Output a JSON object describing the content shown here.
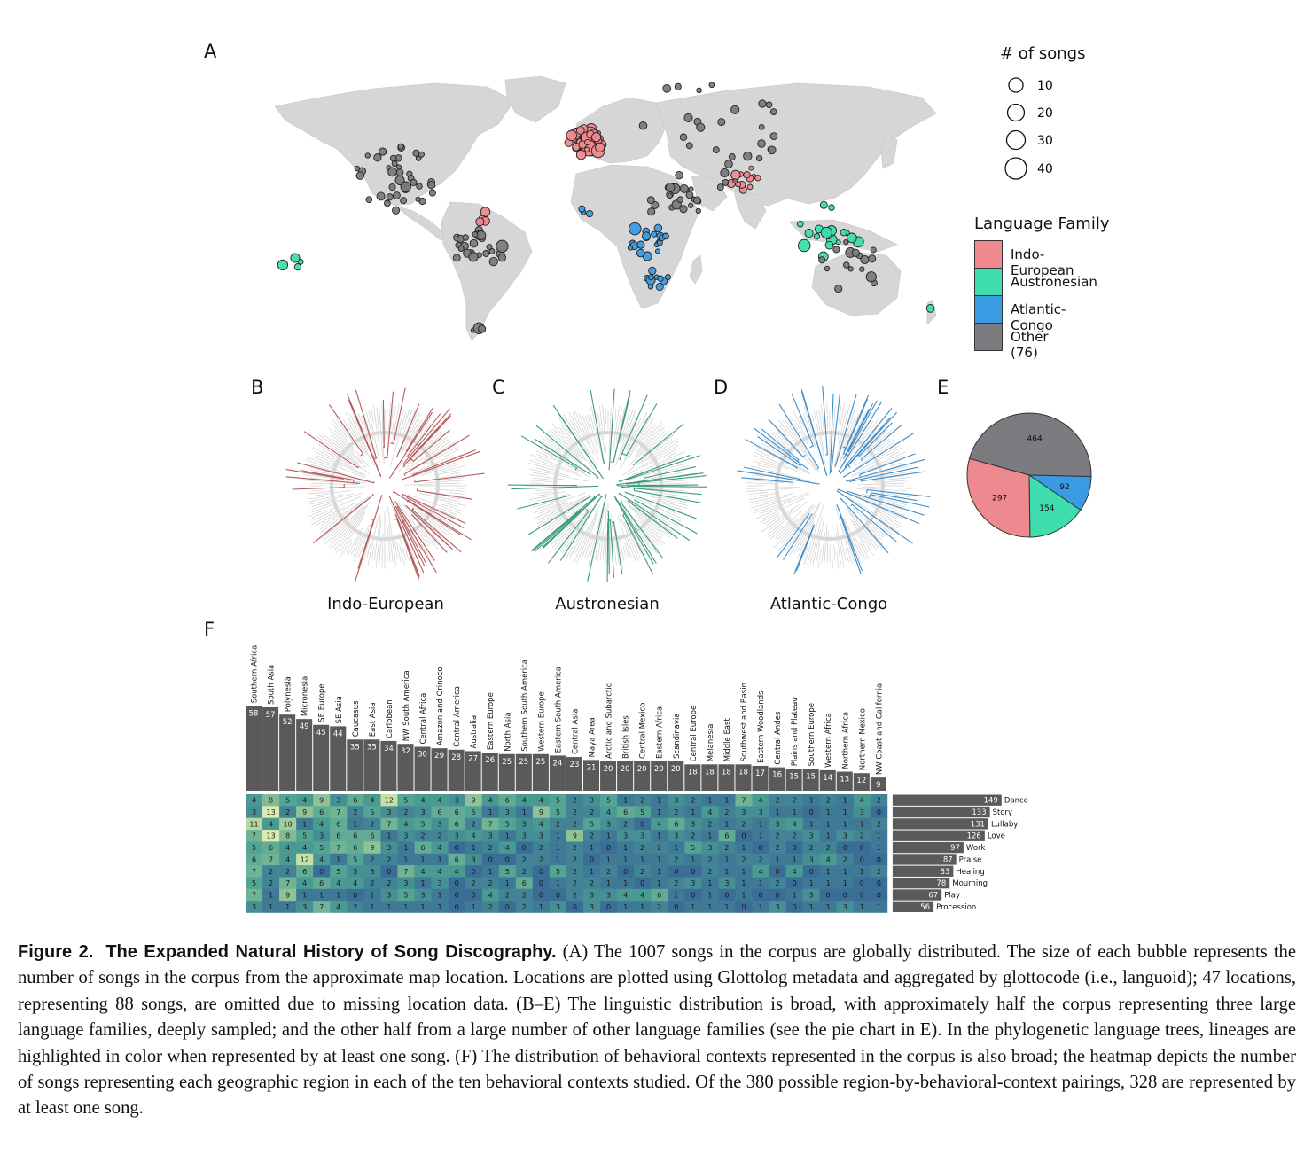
{
  "figure": {
    "panels": {
      "A": "A",
      "B": "B",
      "C": "C",
      "D": "D",
      "E": "E",
      "F": "F"
    },
    "caption": {
      "label": "Figure 2.",
      "title": "The Expanded Natural History of Song Discography.",
      "text": "(A) The 1007 songs in the corpus are globally distributed. The size of each bubble represents the number of songs in the corpus from the approximate map location. Locations are plotted using Glottolog metadata and aggregated by glottocode (i.e., languoid); 47 locations, representing 88 songs, are omitted due to missing location data. (B–E) The linguistic distribution is broad, with approximately half the corpus representing three large language families, deeply sampled; and the other half from a large number of other language families (see the pie chart in E). In the phylogenetic language trees, lineages are highlighted in color when represented by at least one song. (F) The distribution of behavioral contexts represented in the corpus is also broad; the heatmap depicts the number of songs representing each geographic region in each of the ten behavioral contexts studied. Of the 380 possible region-by-behavioral-context pairings, 328 are represented by at least one song."
    }
  },
  "legend": {
    "size_title": "# of songs",
    "sizes": [
      "10",
      "20",
      "30",
      "40"
    ],
    "family_title": "Language Family",
    "families": [
      {
        "label": "Indo-European",
        "color": "#ee8a8f"
      },
      {
        "label": "Austronesian",
        "color": "#3fdcad"
      },
      {
        "label": "Atlantic-Congo",
        "color": "#3a9be3"
      },
      {
        "label": "Other (76)",
        "color": "#7b7b80"
      }
    ]
  },
  "trees": {
    "B": {
      "label": "Indo-European",
      "color": "#b55a5a"
    },
    "C": {
      "label": "Austronesian",
      "color": "#3c9a7f"
    },
    "D": {
      "label": "Atlantic-Congo",
      "color": "#3f8dc8"
    }
  },
  "chart_data": [
    {
      "type": "pie",
      "panel": "E",
      "slices": [
        {
          "value": 464,
          "label": "464",
          "color": "#7b7b80"
        },
        {
          "value": 92,
          "label": "92",
          "color": "#3a9be3"
        },
        {
          "value": 154,
          "label": "154",
          "color": "#3fdcad"
        },
        {
          "value": 297,
          "label": "297",
          "color": "#ee8a8f"
        }
      ]
    },
    {
      "type": "heatmap",
      "panel": "F",
      "regions": [
        "Southern Africa",
        "South Asia",
        "Polynesia",
        "Micronesia",
        "SE Europe",
        "SE Asia",
        "Caucasus",
        "East Asia",
        "Caribbean",
        "NW South America",
        "Central Africa",
        "Amazon and Orinoco",
        "Central America",
        "Australia",
        "Eastern Europe",
        "North Asia",
        "Southern South America",
        "Western Europe",
        "Eastern South America",
        "Central Asia",
        "Maya Area",
        "Arctic and Subarctic",
        "British Isles",
        "Central Mexico",
        "Eastern Africa",
        "Scandinavia",
        "Central Europe",
        "Melanesia",
        "Middle East",
        "Southwest and Basin",
        "Eastern Woodlands",
        "Central Andes",
        "Plains and Plateau",
        "Southern Europe",
        "Western Africa",
        "Northern Africa",
        "Northern Mexico",
        "NW Coast and California"
      ],
      "region_totals": [
        58,
        57,
        52,
        49,
        45,
        44,
        35,
        35,
        34,
        32,
        30,
        29,
        28,
        27,
        26,
        25,
        25,
        25,
        24,
        23,
        21,
        20,
        20,
        20,
        20,
        20,
        18,
        18,
        18,
        18,
        17,
        16,
        15,
        15,
        14,
        13,
        12,
        9
      ],
      "contexts": [
        "Dance",
        "Story",
        "Lullaby",
        "Love",
        "Work",
        "Praise",
        "Healing",
        "Mourning",
        "Play",
        "Procession"
      ],
      "context_totals": [
        149,
        133,
        131,
        126,
        97,
        87,
        83,
        78,
        67,
        56
      ],
      "cells": [
        [
          4,
          8,
          5,
          4,
          9,
          3,
          6,
          4,
          12,
          5,
          4,
          4,
          3,
          9,
          4,
          6,
          4,
          4,
          5,
          2,
          3,
          5,
          1,
          2,
          1,
          3,
          2,
          1,
          1,
          7,
          4,
          2,
          2,
          1,
          2,
          1,
          4,
          2
        ],
        [
          3,
          13,
          2,
          9,
          6,
          7,
          2,
          5,
          3,
          2,
          3,
          6,
          6,
          5,
          1,
          3,
          1,
          9,
          5,
          2,
          2,
          4,
          6,
          5,
          1,
          2,
          1,
          4,
          2,
          3,
          3,
          1,
          1,
          0,
          1,
          1,
          3,
          0
        ],
        [
          11,
          4,
          10,
          1,
          4,
          6,
          1,
          2,
          7,
          4,
          5,
          3,
          6,
          2,
          7,
          5,
          3,
          4,
          2,
          2,
          5,
          3,
          2,
          0,
          4,
          6,
          3,
          2,
          1,
          2,
          1,
          3,
          4,
          1,
          1,
          1,
          1,
          2
        ],
        [
          7,
          13,
          8,
          5,
          3,
          6,
          6,
          6,
          1,
          3,
          2,
          2,
          3,
          4,
          3,
          1,
          3,
          3,
          1,
          9,
          2,
          1,
          3,
          3,
          1,
          3,
          2,
          1,
          6,
          0,
          1,
          2,
          2,
          3,
          1,
          3,
          2,
          1
        ],
        [
          5,
          6,
          4,
          4,
          5,
          7,
          6,
          9,
          3,
          1,
          6,
          4,
          0,
          1,
          2,
          4,
          0,
          2,
          1,
          2,
          1,
          0,
          1,
          2,
          2,
          1,
          5,
          3,
          2,
          1,
          0,
          2,
          0,
          2,
          2,
          0,
          0,
          1
        ],
        [
          6,
          7,
          4,
          12,
          4,
          1,
          5,
          2,
          2,
          1,
          1,
          1,
          6,
          3,
          0,
          0,
          2,
          2,
          1,
          2,
          0,
          1,
          1,
          1,
          1,
          2,
          1,
          2,
          1,
          2,
          2,
          1,
          1,
          3,
          4,
          2,
          0,
          0
        ],
        [
          7,
          2,
          2,
          6,
          0,
          5,
          3,
          3,
          0,
          7,
          4,
          4,
          4,
          0,
          1,
          5,
          2,
          0,
          5,
          2,
          1,
          2,
          0,
          2,
          1,
          0,
          0,
          2,
          1,
          1,
          4,
          0,
          4,
          0,
          1,
          1,
          1,
          2
        ],
        [
          5,
          2,
          7,
          4,
          6,
          4,
          4,
          2,
          2,
          3,
          1,
          3,
          0,
          2,
          2,
          1,
          6,
          0,
          1,
          2,
          2,
          1,
          1,
          0,
          1,
          2,
          3,
          1,
          3,
          1,
          1,
          2,
          0,
          1,
          1,
          1,
          0,
          0
        ],
        [
          7,
          1,
          9,
          1,
          1,
          1,
          0,
          1,
          3,
          5,
          3,
          1,
          0,
          0,
          4,
          2,
          2,
          0,
          0,
          2,
          3,
          3,
          4,
          4,
          6,
          1,
          0,
          1,
          0,
          1,
          0,
          0,
          1,
          3,
          0,
          0,
          0,
          0
        ],
        [
          3,
          1,
          1,
          3,
          7,
          4,
          2,
          1,
          1,
          1,
          1,
          1,
          0,
          1,
          2,
          0,
          2,
          1,
          3,
          0,
          3,
          0,
          1,
          1,
          2,
          0,
          1,
          1,
          1,
          0,
          1,
          3,
          0,
          1,
          1,
          3,
          1,
          1
        ]
      ]
    }
  ]
}
